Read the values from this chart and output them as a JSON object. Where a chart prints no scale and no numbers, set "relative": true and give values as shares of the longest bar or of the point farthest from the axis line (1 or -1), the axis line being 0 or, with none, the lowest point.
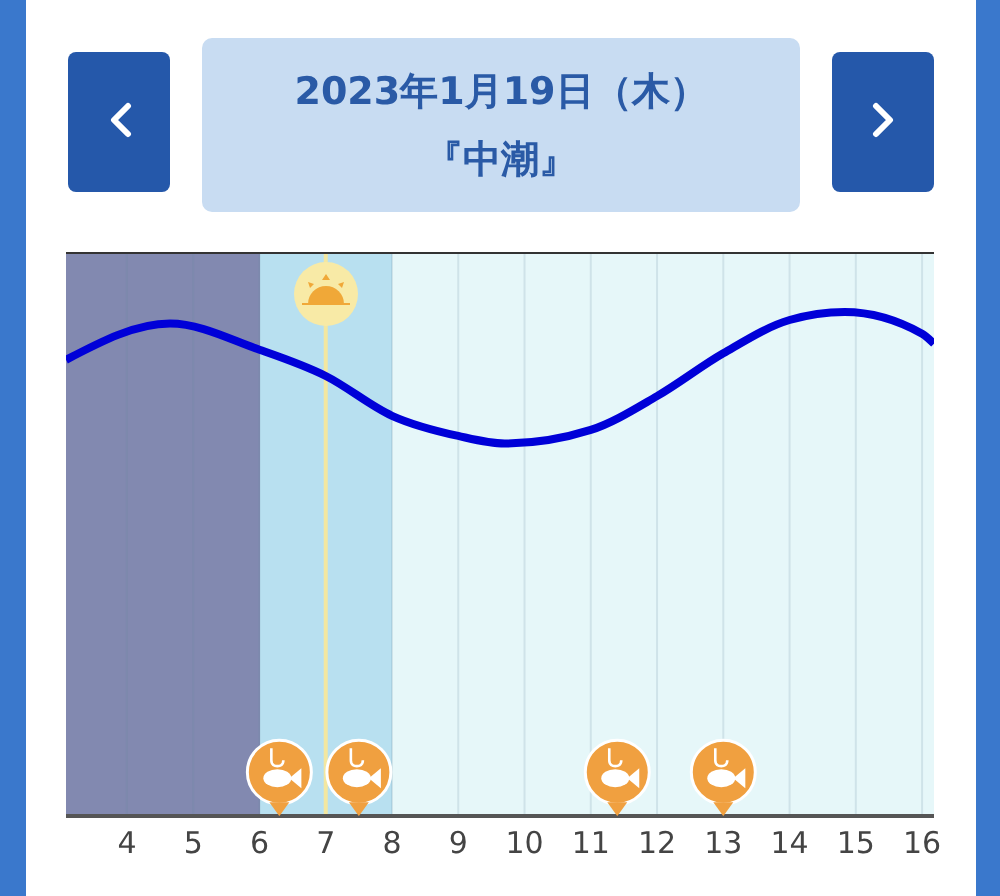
{
  "chart_data": {
    "type": "line",
    "title": "2023年1月19日（木）",
    "subtitle": "『中潮』",
    "relative": true,
    "x": [
      3.08,
      4.65,
      6,
      7,
      8,
      9,
      9.7,
      11,
      12,
      13,
      14,
      14.83,
      16,
      16.18
    ],
    "series": [
      {
        "color": "#0000d8",
        "values": [
          0.905,
          0.977,
          0.925,
          0.873,
          0.794,
          0.754,
          0.739,
          0.766,
          0.833,
          0.918,
          0.984,
          1,
          0.957,
          0.937
        ]
      },
      {
        "type": "scatter",
        "marker": "circle",
        "color": "#f0a040",
        "x": [
          6.3,
          7.5,
          11.4,
          13
        ],
        "values": [
          0.087,
          0.087,
          0.087,
          0.087
        ]
      }
    ],
    "xlim": [
      3.08,
      16.18
    ],
    "xticks": [
      4,
      5,
      6,
      7,
      8,
      9,
      10,
      11,
      12,
      13,
      14,
      15,
      16
    ],
    "grid": "x",
    "line_style": "solid",
    "bands": [
      {
        "axis": "x",
        "from": 3.08,
        "to": 6,
        "color": "#8289b0"
      },
      {
        "axis": "x",
        "from": 6,
        "to": 8,
        "color": "#b8e0f0"
      },
      {
        "axis": "x",
        "from": 8,
        "to": 16.18,
        "color": "#e6f7f9"
      }
    ],
    "ref_lines": [
      {
        "axis": "x",
        "value": 7,
        "color": "#f3e7a0"
      }
    ]
  }
}
